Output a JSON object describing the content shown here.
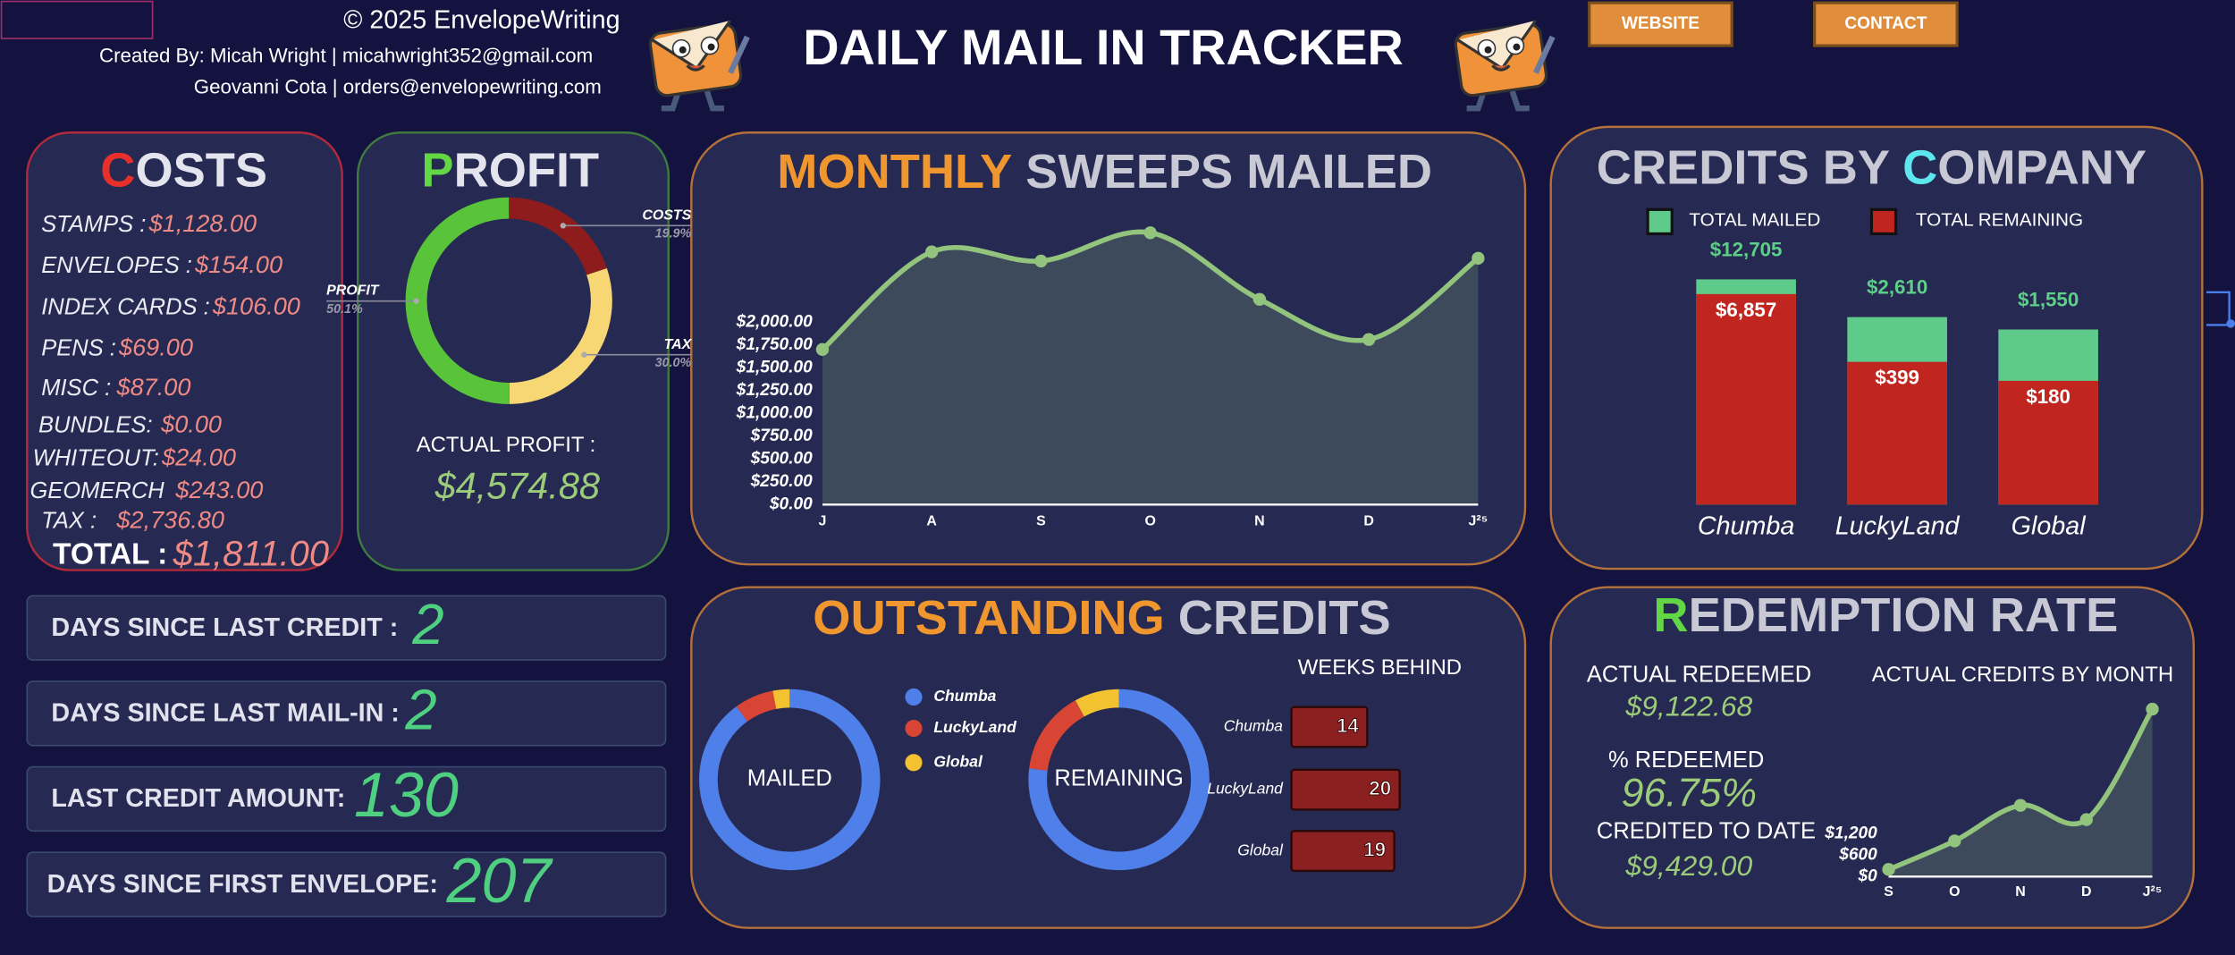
{
  "header": {
    "copyright": "© 2025 EnvelopeWriting",
    "credit_line_1": "Created By: Micah Wright | micahwright352@gmail.com",
    "credit_line_2": "Geovanni Cota | orders@envelopewriting.com",
    "title": "DAILY MAIL IN TRACKER",
    "buttons": [
      "WEBSITE",
      "CONTACT"
    ]
  },
  "costs": {
    "title_parts": [
      "C",
      "OSTS"
    ],
    "items": [
      [
        "STAMPS :",
        "$1,128.00"
      ],
      [
        "ENVELOPES :",
        "$154.00"
      ],
      [
        "INDEX CARDS :",
        "$106.00"
      ],
      [
        "PENS :",
        "$69.00"
      ],
      [
        "MISC :",
        "$87.00"
      ],
      [
        "BUNDLES:",
        "$0.00"
      ],
      [
        "WHITEOUT:",
        "$24.00"
      ],
      [
        "GEOMERCH",
        "$243.00"
      ],
      [
        "TAX :",
        "$2,736.80"
      ]
    ],
    "total_label": "TOTAL :",
    "total_value": "$1,811.00"
  },
  "profit": {
    "label": "ACTUAL PROFIT :",
    "value": "$4,574.88"
  },
  "stats": [
    {
      "label": "DAYS SINCE LAST CREDIT :",
      "value": 2
    },
    {
      "label": "DAYS SINCE LAST MAIL-IN :",
      "value": 2
    },
    {
      "label": "LAST CREDIT AMOUNT:",
      "value": 130
    },
    {
      "label": "DAYS SINCE FIRST ENVELOPE:",
      "value": 207
    }
  ],
  "redemption": {
    "title_parts": [
      "R",
      "EDEMPTION RATE"
    ],
    "actual_redeemed_label": "ACTUAL REDEEMED",
    "actual_redeemed": "$9,122.68",
    "percent_label": "% REDEEMED",
    "percent": "96.75%",
    "credited_label": "CREDITED TO DATE",
    "credited": "$9,429.00"
  },
  "chart_data": [
    {
      "type": "pie",
      "donut": true,
      "title_parts": [
        "P",
        "ROFIT"
      ],
      "categories": [
        "COSTS",
        "TAX",
        "PROFIT"
      ],
      "values": [
        19.9,
        30.0,
        50.1
      ],
      "value_labels": [
        "19.9%",
        "30.0%",
        "50.1%"
      ],
      "colors": [
        "#8e1c1c",
        "#f7d774",
        "#59c43a"
      ]
    },
    {
      "type": "line",
      "area": true,
      "title_parts": [
        "MONTHLY",
        " SWEEPS MAILED"
      ],
      "categories": [
        "J",
        "A",
        "S",
        "O",
        "N",
        "D",
        "J²⁵"
      ],
      "values": [
        1700,
        2770,
        2670,
        2980,
        2250,
        1810,
        2700
      ],
      "color": "#93c47d",
      "ylim": [
        0,
        3000
      ],
      "yticks": [
        {
          "value": 0,
          "label": "$0.00"
        },
        {
          "value": 250,
          "label": "$250.00"
        },
        {
          "value": 500,
          "label": "$500.00"
        },
        {
          "value": 750,
          "label": "$750.00"
        },
        {
          "value": 1000,
          "label": "$1,000.00"
        },
        {
          "value": 1250,
          "label": "$1,250.00"
        },
        {
          "value": 1500,
          "label": "$1,500.00"
        },
        {
          "value": 1750,
          "label": "$1,750.00"
        },
        {
          "value": 2000,
          "label": "$2,000.00"
        }
      ]
    },
    {
      "type": "bar",
      "overlap": true,
      "log_scale": true,
      "title_parts": [
        "CREDITS BY ",
        "C",
        "OMPANY"
      ],
      "categories": [
        "Chumba",
        "LuckyLand",
        "Global"
      ],
      "ylim": [
        1,
        100000
      ],
      "series": [
        {
          "name": "TOTAL MAILED",
          "color": "#5ecb8a",
          "values": [
            12705,
            2610,
            1550
          ],
          "value_labels": [
            "$12,705",
            "$2,610",
            "$1,550"
          ]
        },
        {
          "name": "TOTAL REMAINING",
          "color": "#c0261f",
          "values": [
            6857,
            399,
            180
          ],
          "value_labels": [
            "$6,857",
            "$399",
            "$180"
          ]
        }
      ]
    },
    {
      "type": "pie",
      "donut": true,
      "title_parts": [
        "OUTSTANDING",
        " CREDITS"
      ],
      "categories": [
        "Chumba",
        "LuckyLand",
        "Global"
      ],
      "colors": [
        "#4f7fe8",
        "#d84535",
        "#f2c230"
      ],
      "series": [
        {
          "name": "MAILED",
          "values": [
            90,
            7,
            3
          ]
        },
        {
          "name": "REMAINING",
          "values": [
            77,
            15,
            8
          ]
        }
      ]
    },
    {
      "type": "bar",
      "horizontal": true,
      "title": "WEEKS BEHIND",
      "categories": [
        "Chumba",
        "LuckyLand",
        "Global"
      ],
      "values": [
        14,
        20,
        19
      ],
      "color": "#8b2020",
      "xlim": [
        0,
        25
      ]
    },
    {
      "type": "line",
      "area": true,
      "title": "ACTUAL CREDITS BY MONTH",
      "categories": [
        "S",
        "O",
        "N",
        "D",
        "J²⁵"
      ],
      "values": [
        200,
        1000,
        2000,
        1600,
        4700
      ],
      "color": "#93c47d",
      "ylim": [
        0,
        4800
      ],
      "yticks": [
        {
          "value": 0,
          "label": "$0"
        },
        {
          "value": 600,
          "label": "$600"
        },
        {
          "value": 1200,
          "label": "$1,200"
        }
      ]
    }
  ]
}
